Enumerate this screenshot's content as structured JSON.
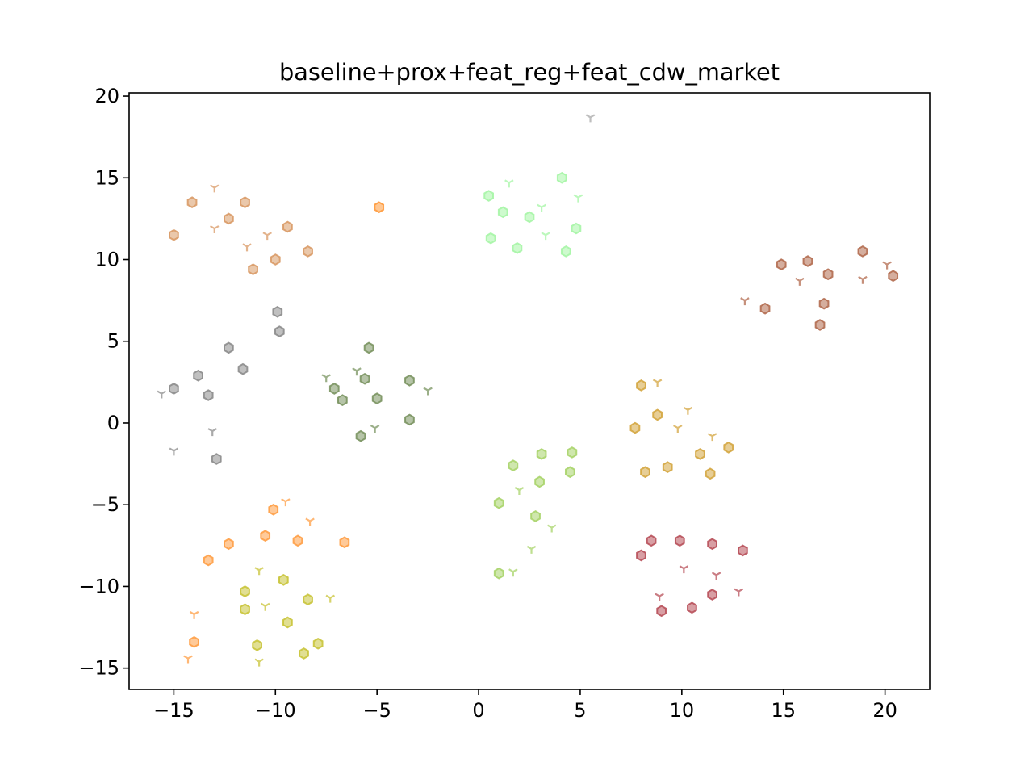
{
  "chart_data": {
    "type": "scatter",
    "title": "baseline+prox+feat_reg+feat_cdw_market",
    "xlabel": "",
    "ylabel": "",
    "xlim": [
      -17.2,
      22.2
    ],
    "ylim": [
      -16.3,
      20.2
    ],
    "xticks": [
      -15,
      -10,
      -5,
      0,
      5,
      10,
      15,
      20
    ],
    "yticks": [
      -15,
      -10,
      -5,
      0,
      5,
      10,
      15,
      20
    ],
    "xtick_labels": [
      "−15",
      "−10",
      "−5",
      "0",
      "5",
      "10",
      "15",
      "20"
    ],
    "ytick_labels": [
      "−15",
      "−10",
      "−5",
      "0",
      "5",
      "10",
      "15",
      "20"
    ],
    "grid": false,
    "legend": "none",
    "marker_hexagon": "hexagon",
    "marker_tri": "tri_down",
    "series": [
      {
        "color": "#d99a66",
        "hexagon": [
          [
            -15.0,
            11.5
          ],
          [
            -14.1,
            13.5
          ],
          [
            -12.3,
            12.5
          ],
          [
            -11.5,
            13.5
          ],
          [
            -11.1,
            9.4
          ],
          [
            -10.0,
            10.0
          ],
          [
            -9.4,
            12.0
          ],
          [
            -8.4,
            10.5
          ]
        ],
        "tri": [
          [
            -13.0,
            14.4
          ],
          [
            -13.0,
            11.9
          ],
          [
            -11.4,
            10.8
          ],
          [
            -10.4,
            11.5
          ]
        ]
      },
      {
        "color": "#ff9a3c",
        "hexagon": [
          [
            -4.9,
            13.2
          ]
        ],
        "tri": []
      },
      {
        "color": "#a6f5a6",
        "hexagon": [
          [
            0.5,
            13.9
          ],
          [
            0.6,
            11.3
          ],
          [
            1.2,
            12.9
          ],
          [
            1.9,
            10.7
          ],
          [
            2.5,
            12.6
          ],
          [
            4.1,
            15.0
          ],
          [
            4.3,
            10.5
          ],
          [
            4.8,
            11.9
          ]
        ],
        "tri": [
          [
            1.5,
            14.7
          ],
          [
            3.1,
            13.2
          ],
          [
            3.3,
            11.5
          ],
          [
            4.9,
            13.8
          ]
        ]
      },
      {
        "color": "#a8a8a8",
        "hexagon": [],
        "tri": [
          [
            5.5,
            18.7
          ]
        ]
      },
      {
        "color": "#b36b4f",
        "hexagon": [
          [
            14.1,
            7.0
          ],
          [
            14.9,
            9.7
          ],
          [
            16.2,
            9.9
          ],
          [
            16.8,
            6.0
          ],
          [
            17.0,
            7.3
          ],
          [
            17.2,
            9.1
          ],
          [
            18.9,
            10.5
          ],
          [
            20.4,
            9.0
          ]
        ],
        "tri": [
          [
            13.1,
            7.5
          ],
          [
            15.8,
            8.7
          ],
          [
            18.9,
            8.8
          ],
          [
            20.1,
            9.7
          ]
        ]
      },
      {
        "color": "#8c8c8c",
        "hexagon": [
          [
            -15.0,
            2.1
          ],
          [
            -13.8,
            2.9
          ],
          [
            -13.3,
            1.7
          ],
          [
            -12.9,
            -2.2
          ],
          [
            -12.3,
            4.6
          ],
          [
            -11.6,
            3.3
          ],
          [
            -9.9,
            6.8
          ],
          [
            -9.8,
            5.6
          ]
        ],
        "tri": [
          [
            -15.6,
            1.8
          ],
          [
            -15.0,
            -1.7
          ],
          [
            -13.1,
            -0.5
          ]
        ]
      },
      {
        "color": "#7a9460",
        "hexagon": [
          [
            -7.1,
            2.1
          ],
          [
            -6.7,
            1.4
          ],
          [
            -5.8,
            -0.8
          ],
          [
            -5.6,
            2.7
          ],
          [
            -5.4,
            4.6
          ],
          [
            -5.0,
            1.5
          ],
          [
            -3.4,
            2.6
          ],
          [
            -3.4,
            0.2
          ]
        ],
        "tri": [
          [
            -7.5,
            2.8
          ],
          [
            -6.0,
            3.2
          ],
          [
            -5.1,
            -0.3
          ],
          [
            -2.5,
            2.0
          ]
        ]
      },
      {
        "color": "#d4a640",
        "hexagon": [
          [
            7.7,
            -0.3
          ],
          [
            8.0,
            2.3
          ],
          [
            8.2,
            -3.0
          ],
          [
            8.8,
            0.5
          ],
          [
            9.3,
            -2.7
          ],
          [
            10.9,
            -1.9
          ],
          [
            11.4,
            -3.1
          ],
          [
            12.3,
            -1.5
          ]
        ],
        "tri": [
          [
            8.8,
            2.5
          ],
          [
            9.8,
            -0.3
          ],
          [
            10.3,
            0.8
          ],
          [
            11.5,
            -0.8
          ]
        ]
      },
      {
        "color": "#a8d46a",
        "hexagon": [
          [
            1.0,
            -4.9
          ],
          [
            1.0,
            -9.2
          ],
          [
            1.7,
            -2.6
          ],
          [
            2.8,
            -5.7
          ],
          [
            3.0,
            -3.6
          ],
          [
            3.1,
            -1.9
          ],
          [
            4.5,
            -3.0
          ],
          [
            4.6,
            -1.8
          ]
        ],
        "tri": [
          [
            1.7,
            -9.1
          ],
          [
            2.0,
            -4.1
          ],
          [
            2.6,
            -7.7
          ],
          [
            3.6,
            -6.4
          ]
        ]
      },
      {
        "color": "#b8505a",
        "hexagon": [
          [
            8.0,
            -8.1
          ],
          [
            8.5,
            -7.2
          ],
          [
            9.0,
            -11.5
          ],
          [
            9.9,
            -7.2
          ],
          [
            10.5,
            -11.3
          ],
          [
            11.5,
            -10.5
          ],
          [
            11.5,
            -7.4
          ],
          [
            13.0,
            -7.8
          ]
        ],
        "tri": [
          [
            8.9,
            -10.6
          ],
          [
            10.1,
            -8.9
          ],
          [
            11.7,
            -9.3
          ],
          [
            12.8,
            -10.3
          ]
        ]
      },
      {
        "color": "#ff9f45",
        "hexagon": [
          [
            -14.0,
            -13.4
          ],
          [
            -13.3,
            -8.4
          ],
          [
            -12.3,
            -7.4
          ],
          [
            -10.5,
            -6.9
          ],
          [
            -10.1,
            -5.3
          ],
          [
            -8.9,
            -7.2
          ],
          [
            -6.6,
            -7.3
          ]
        ],
        "tri": [
          [
            -14.3,
            -14.4
          ],
          [
            -14.0,
            -11.7
          ],
          [
            -9.5,
            -4.8
          ],
          [
            -8.3,
            -6.0
          ]
        ]
      },
      {
        "color": "#c9c43a",
        "hexagon": [
          [
            -11.5,
            -10.3
          ],
          [
            -11.5,
            -11.4
          ],
          [
            -10.9,
            -13.6
          ],
          [
            -9.6,
            -9.6
          ],
          [
            -9.4,
            -12.2
          ],
          [
            -8.6,
            -14.1
          ],
          [
            -8.4,
            -10.8
          ],
          [
            -7.9,
            -13.5
          ]
        ],
        "tri": [
          [
            -10.8,
            -14.6
          ],
          [
            -10.8,
            -9.0
          ],
          [
            -10.5,
            -11.2
          ],
          [
            -7.3,
            -10.7
          ]
        ]
      }
    ]
  }
}
